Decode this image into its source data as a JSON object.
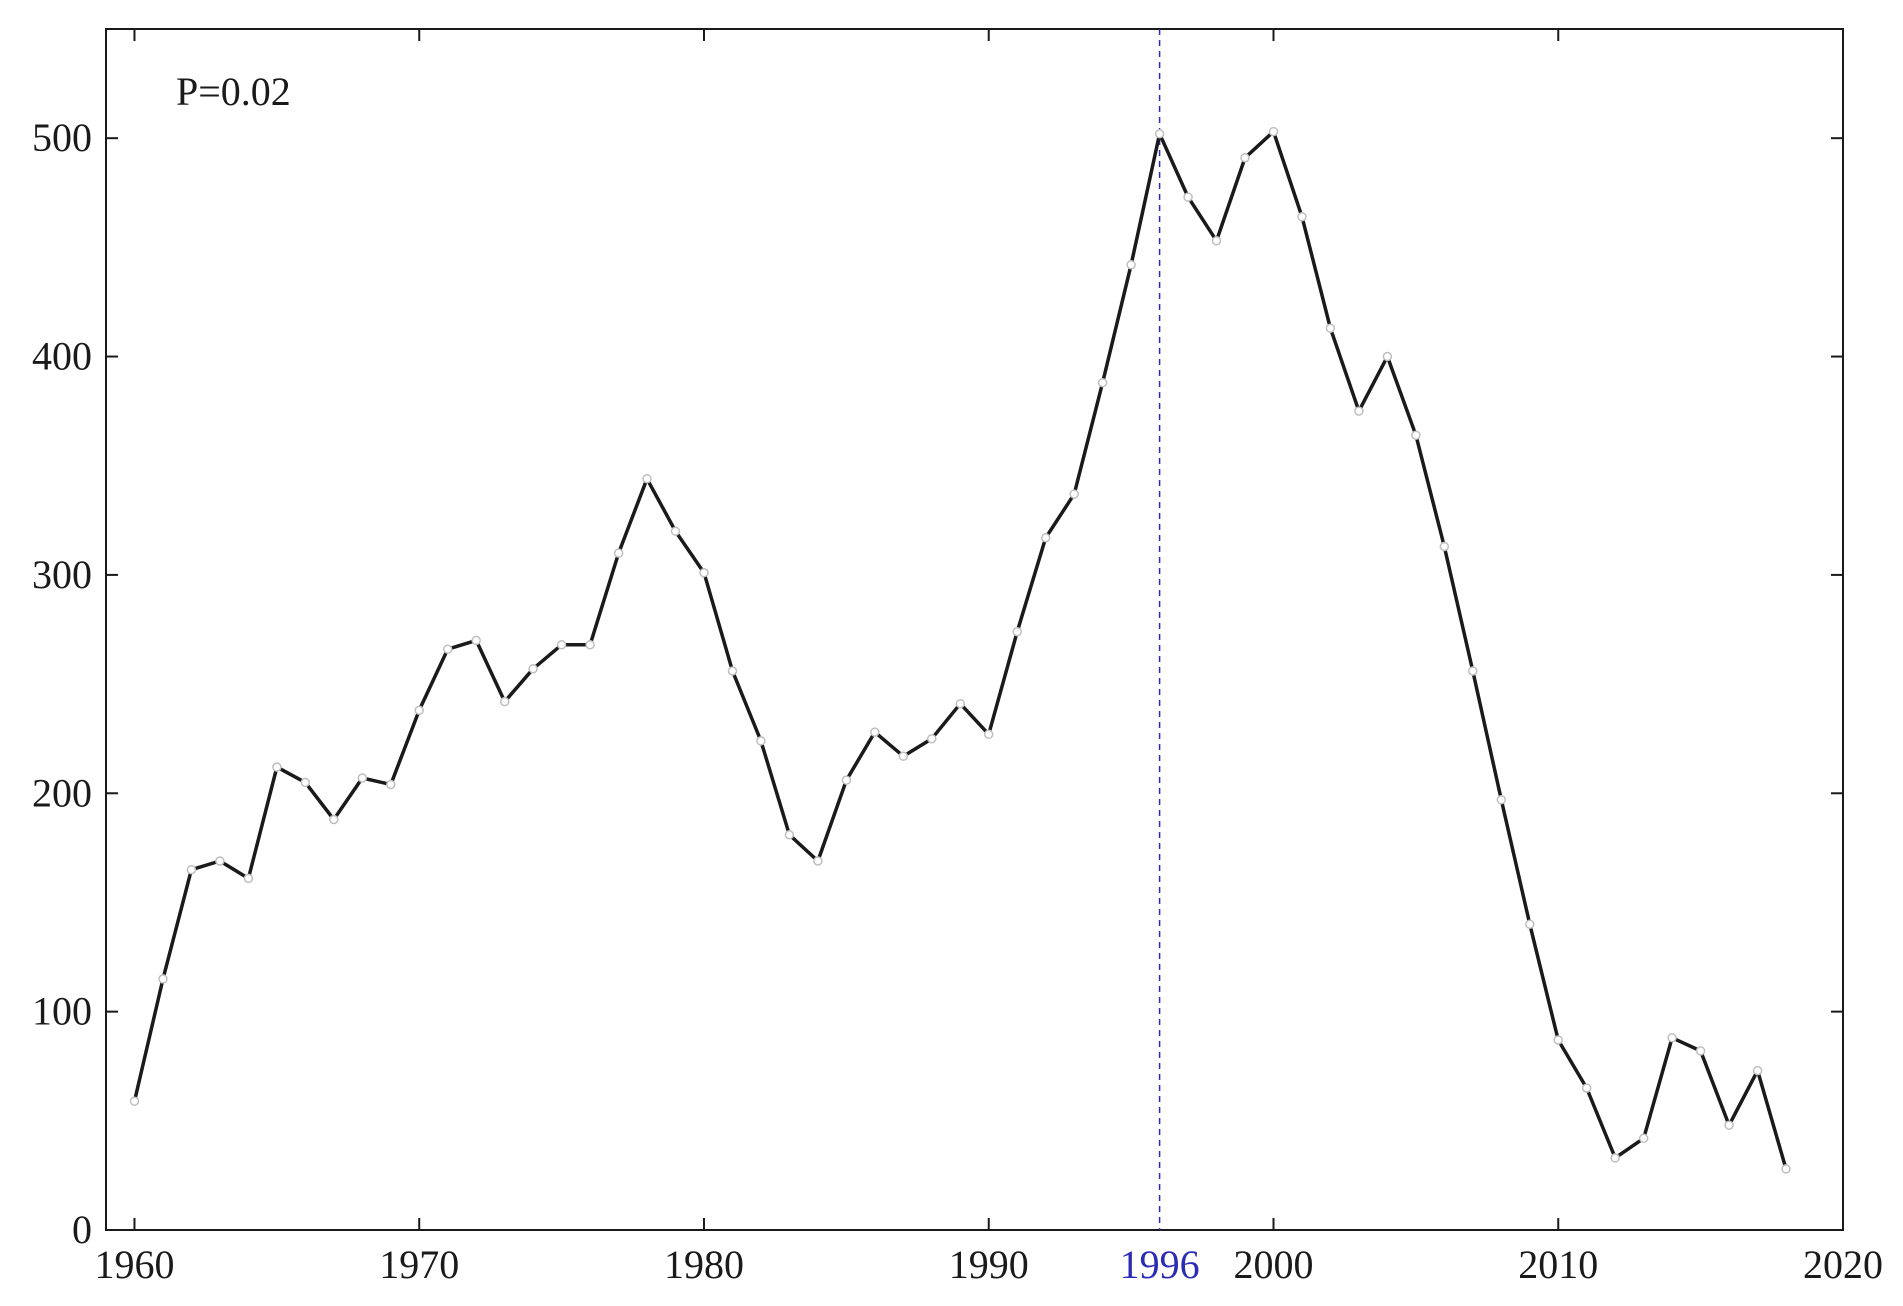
{
  "chart_data": {
    "type": "line",
    "title": "",
    "xlabel": "",
    "ylabel": "",
    "xlim": [
      1959,
      2020
    ],
    "ylim": [
      0,
      550
    ],
    "xticks": [
      1960,
      1970,
      1980,
      1990,
      2000,
      2010,
      2020
    ],
    "yticks": [
      0,
      100,
      200,
      300,
      400,
      500
    ],
    "grid": false,
    "legend": "none",
    "annotation": "P=0.02",
    "marker_year": 1996,
    "marker_label": "1996",
    "marker_color": "#2b2bb5",
    "line_color": "#1a1a1a",
    "series": [
      {
        "x": [
          1960,
          1961,
          1962,
          1963,
          1964,
          1965,
          1966,
          1967,
          1968,
          1969,
          1970,
          1971,
          1972,
          1973,
          1974,
          1975,
          1976,
          1977,
          1978,
          1979,
          1980,
          1981,
          1982,
          1983,
          1984,
          1985,
          1986,
          1987,
          1988,
          1989,
          1990,
          1991,
          1992,
          1993,
          1994,
          1995,
          1996,
          1997,
          1998,
          1999,
          2000,
          2001,
          2002,
          2003,
          2004,
          2005,
          2006,
          2007,
          2008,
          2009,
          2010,
          2011,
          2012,
          2013,
          2014,
          2015,
          2016,
          2017,
          2018
        ],
        "values": [
          59,
          115,
          165,
          169,
          161,
          212,
          205,
          188,
          207,
          204,
          238,
          266,
          270,
          242,
          257,
          268,
          268,
          310,
          344,
          320,
          301,
          256,
          224,
          181,
          169,
          206,
          228,
          217,
          225,
          241,
          227,
          274,
          317,
          337,
          388,
          442,
          502,
          473,
          453,
          491,
          503,
          464,
          413,
          375,
          400,
          364,
          313,
          256,
          197,
          140,
          87,
          65,
          33,
          42,
          88,
          82,
          48,
          73,
          28
        ]
      }
    ]
  }
}
